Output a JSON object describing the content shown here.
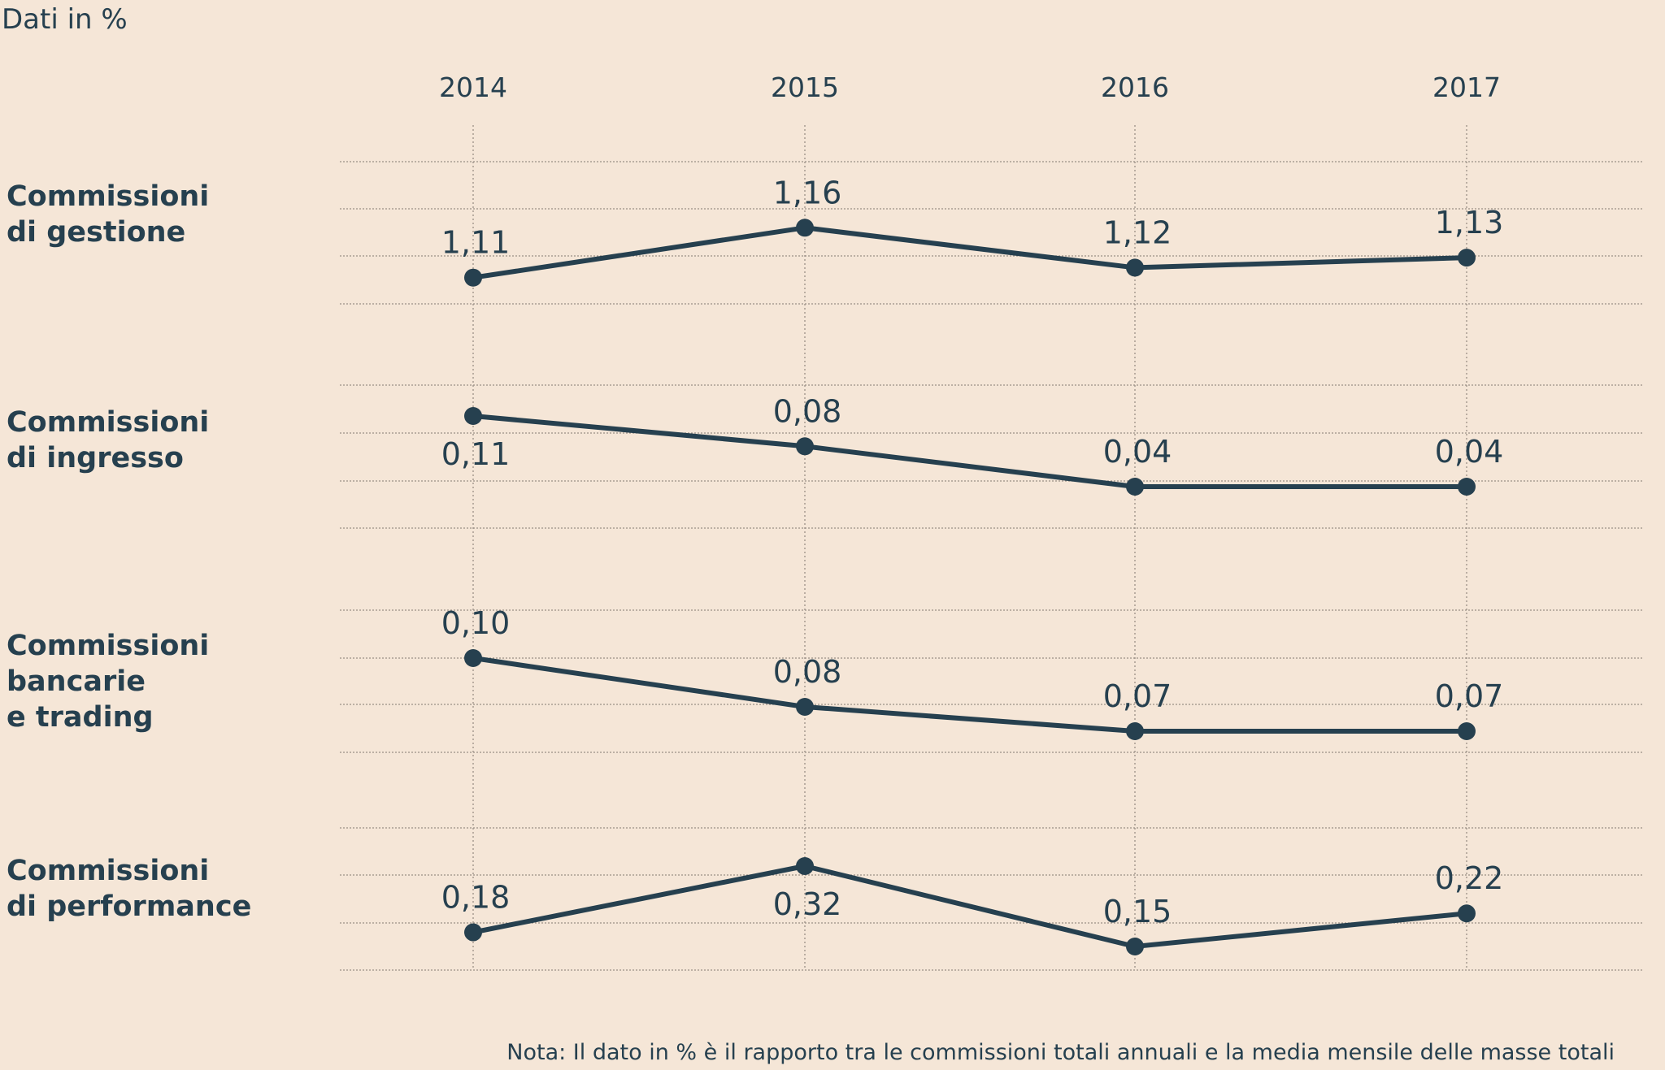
{
  "unit_label": "Dati in %",
  "note": "Nota: Il dato in % è il rapporto tra le commissioni totali annuali e la media mensile delle masse totali",
  "colors": {
    "background": "#f5e6d7",
    "line": "#26404f",
    "grid": "#9a8f86"
  },
  "chart_data": [
    {
      "type": "line",
      "title": "Commissioni di gestione",
      "categories": [
        "2014",
        "2015",
        "2016",
        "2017"
      ],
      "values": [
        1.11,
        1.16,
        1.12,
        1.13
      ],
      "labels": [
        "1,11",
        "1,16",
        "1,12",
        "1,13"
      ],
      "label_positions": [
        "above",
        "above",
        "above",
        "above"
      ],
      "grid": true
    },
    {
      "type": "line",
      "title": "Commissioni di ingresso",
      "categories": [
        "2014",
        "2015",
        "2016",
        "2017"
      ],
      "values": [
        0.11,
        0.08,
        0.04,
        0.04
      ],
      "labels": [
        "0,11",
        "0,08",
        "0,04",
        "0,04"
      ],
      "label_positions": [
        "below",
        "above",
        "above",
        "above"
      ],
      "grid": true
    },
    {
      "type": "line",
      "title": "Commissioni bancarie e trading",
      "categories": [
        "2014",
        "2015",
        "2016",
        "2017"
      ],
      "values": [
        0.1,
        0.08,
        0.07,
        0.07
      ],
      "labels": [
        "0,10",
        "0,08",
        "0,07",
        "0,07"
      ],
      "label_positions": [
        "above",
        "above",
        "above",
        "above"
      ],
      "grid": true
    },
    {
      "type": "line",
      "title": "Commissioni di performance",
      "categories": [
        "2014",
        "2015",
        "2016",
        "2017"
      ],
      "values": [
        0.18,
        0.32,
        0.15,
        0.22
      ],
      "labels": [
        "0,18",
        "0,32",
        "0,15",
        "0,22"
      ],
      "label_positions": [
        "above",
        "below",
        "above",
        "above"
      ],
      "grid": true
    }
  ],
  "row_labels": [
    "Commissioni\ndi gestione",
    "Commissioni\ndi ingresso",
    "Commissioni\nbancarie\ne trading",
    "Commissioni\ndi performance"
  ]
}
